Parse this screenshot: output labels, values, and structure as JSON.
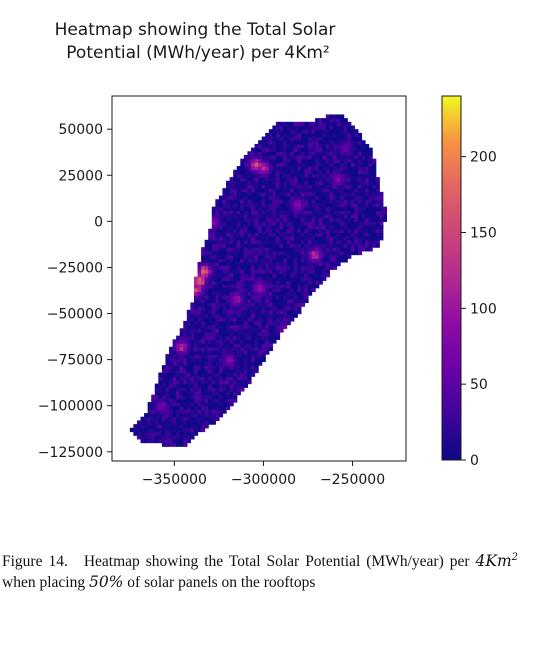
{
  "chart_data": {
    "type": "heatmap",
    "title": [
      "Heatmap showing the Total Solar",
      "Potential (MWh/year) per 4Km²"
    ],
    "xlabel": "",
    "ylabel": "",
    "xlim": [
      -385000,
      -220000
    ],
    "ylim": [
      -130000,
      68000
    ],
    "x_ticks": [
      -350000,
      -300000,
      -250000
    ],
    "x_tick_labels": [
      "−350000",
      "−300000",
      "−250000"
    ],
    "y_ticks": [
      50000,
      25000,
      0,
      -25000,
      -50000,
      -75000,
      -100000,
      -125000
    ],
    "y_tick_labels": [
      "50000",
      "25000",
      "0",
      "−25000",
      "−50000",
      "−75000",
      "−100000",
      "−125000"
    ],
    "colorbar": {
      "colormap": "plasma",
      "range": [
        0,
        240
      ],
      "ticks": [
        0,
        50,
        100,
        150,
        200
      ],
      "tick_labels": [
        "0",
        "50",
        "100",
        "150",
        "200"
      ]
    },
    "cell_size": 2000,
    "region_outline": [
      [
        -345000,
        -122000
      ],
      [
        -368000,
        -120000
      ],
      [
        -374000,
        -113000
      ],
      [
        -366000,
        -104000
      ],
      [
        -360000,
        -88000
      ],
      [
        -353000,
        -70000
      ],
      [
        -345000,
        -56000
      ],
      [
        -339000,
        -42000
      ],
      [
        -338000,
        -30000
      ],
      [
        -335000,
        -17000
      ],
      [
        -330000,
        -4000
      ],
      [
        -328000,
        8000
      ],
      [
        -321000,
        20000
      ],
      [
        -312000,
        33000
      ],
      [
        -303000,
        43000
      ],
      [
        -293000,
        54000
      ],
      [
        -271000,
        55000
      ],
      [
        -257000,
        59000
      ],
      [
        -249000,
        52000
      ],
      [
        -239000,
        38000
      ],
      [
        -236000,
        24000
      ],
      [
        -231000,
        4000
      ],
      [
        -235000,
        -14000
      ],
      [
        -249000,
        -18000
      ],
      [
        -262000,
        -27000
      ],
      [
        -274000,
        -40000
      ],
      [
        -282000,
        -53000
      ],
      [
        -291000,
        -62000
      ],
      [
        -299000,
        -74000
      ],
      [
        -308000,
        -88000
      ],
      [
        -315000,
        -96000
      ],
      [
        -323000,
        -106000
      ],
      [
        -336000,
        -115000
      ]
    ],
    "hotspots": [
      {
        "x": -336000,
        "y": -32000,
        "value": 235
      },
      {
        "x": -333000,
        "y": -27000,
        "value": 205
      },
      {
        "x": -338000,
        "y": -37000,
        "value": 180
      },
      {
        "x": -304000,
        "y": 31000,
        "value": 175
      },
      {
        "x": -300000,
        "y": 29000,
        "value": 140
      },
      {
        "x": -271000,
        "y": -18000,
        "value": 150
      },
      {
        "x": -346000,
        "y": -68000,
        "value": 140
      },
      {
        "x": -302000,
        "y": -36000,
        "value": 125
      },
      {
        "x": -315000,
        "y": -42000,
        "value": 110
      },
      {
        "x": -281000,
        "y": 9000,
        "value": 100
      },
      {
        "x": -258000,
        "y": 23000,
        "value": 90
      },
      {
        "x": -328000,
        "y": 0,
        "value": 95
      },
      {
        "x": -357000,
        "y": -100000,
        "value": 80
      },
      {
        "x": -319000,
        "y": -75000,
        "value": 85
      },
      {
        "x": -254000,
        "y": 40000,
        "value": 70
      },
      {
        "x": -289000,
        "y": -58000,
        "value": 75
      }
    ],
    "background_value_range": [
      0,
      45
    ]
  },
  "caption": {
    "label": "Figure 14.",
    "text_before_math": "Heatmap showing the Total Solar Potential (MWh/year) per ",
    "math_unit": "4Km",
    "math_exp": "2",
    "text_middle": " when placing ",
    "math_pct": "50%",
    "text_after": " of solar panels on the rooftops"
  },
  "colors": {
    "text": "#1a1a1a",
    "background": "#ffffff"
  }
}
